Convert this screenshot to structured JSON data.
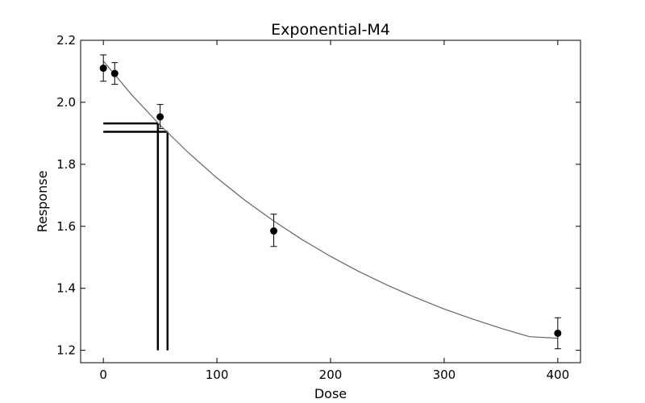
{
  "chart_data": {
    "type": "scatter",
    "title": "Exponential-M4",
    "xlabel": "Dose",
    "ylabel": "Response",
    "xlim": [
      -20,
      420
    ],
    "ylim": [
      1.16,
      2.2
    ],
    "x_ticks": [
      0,
      100,
      200,
      300,
      400
    ],
    "y_ticks": [
      1.2,
      1.4,
      1.6,
      1.8,
      2.0,
      2.2
    ],
    "x_tick_labels": [
      "0",
      "100",
      "200",
      "300",
      "400"
    ],
    "y_tick_labels": [
      "1.2",
      "1.4",
      "1.6",
      "1.8",
      "2.0",
      "2.2"
    ],
    "grid": false,
    "observations": [
      {
        "x": 0,
        "y": 2.11,
        "err_low": 2.068,
        "err_high": 2.153
      },
      {
        "x": 10,
        "y": 2.093,
        "err_low": 2.058,
        "err_high": 2.128
      },
      {
        "x": 50,
        "y": 1.953,
        "err_low": 1.915,
        "err_high": 1.993
      },
      {
        "x": 150,
        "y": 1.585,
        "err_low": 1.535,
        "err_high": 1.639
      },
      {
        "x": 400,
        "y": 1.255,
        "err_low": 1.205,
        "err_high": 1.305
      }
    ],
    "model_curve": {
      "form": "c + (a - c) * (1 - exp(-b * x)) ... decreasing exponential",
      "x": [
        0,
        25,
        50,
        75,
        100,
        125,
        150,
        175,
        200,
        225,
        250,
        275,
        300,
        325,
        350,
        375,
        400
      ],
      "y": [
        2.133,
        2.024,
        1.926,
        1.837,
        1.756,
        1.683,
        1.617,
        1.557,
        1.503,
        1.454,
        1.41,
        1.37,
        1.333,
        1.301,
        1.271,
        1.244,
        1.239
      ]
    },
    "bmd_markers": [
      {
        "dose": 48,
        "response": 1.932
      },
      {
        "dose": 56.5,
        "response": 1.905
      }
    ],
    "colors": {
      "points": "#000000",
      "curve": "#666666",
      "markers": "#000000"
    }
  }
}
